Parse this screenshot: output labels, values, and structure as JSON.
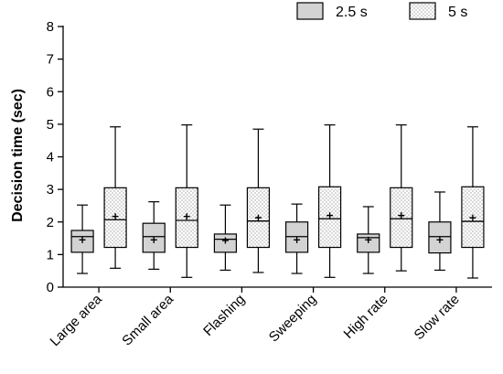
{
  "chart_data": {
    "type": "box",
    "title": "",
    "xlabel": "",
    "ylabel": "Decision time (sec)",
    "ylim": [
      0,
      8
    ],
    "yticks": [
      0,
      1,
      2,
      3,
      4,
      5,
      6,
      7,
      8
    ],
    "grid": false,
    "legend_position": "top-right",
    "categories": [
      "Large area",
      "Small area",
      "Flashing",
      "Sweeping",
      "High rate",
      "Slow rate"
    ],
    "series": [
      {
        "name": "2.5 s",
        "fill": "#d3d3d3",
        "pattern": "solid",
        "boxes": [
          {
            "min": 0.42,
            "q1": 1.07,
            "median": 1.55,
            "q3": 1.74,
            "max": 2.52,
            "mean": 1.45
          },
          {
            "min": 0.55,
            "q1": 1.07,
            "median": 1.55,
            "q3": 1.96,
            "max": 2.62,
            "mean": 1.45
          },
          {
            "min": 0.52,
            "q1": 1.07,
            "median": 1.47,
            "q3": 1.63,
            "max": 2.52,
            "mean": 1.43
          },
          {
            "min": 0.42,
            "q1": 1.07,
            "median": 1.55,
            "q3": 2.0,
            "max": 2.55,
            "mean": 1.45
          },
          {
            "min": 0.42,
            "q1": 1.07,
            "median": 1.52,
            "q3": 1.63,
            "max": 2.47,
            "mean": 1.45
          },
          {
            "min": 0.52,
            "q1": 1.05,
            "median": 1.55,
            "q3": 2.0,
            "max": 2.92,
            "mean": 1.45
          }
        ]
      },
      {
        "name": "5 s",
        "fill": "#ffffff",
        "pattern": "dots",
        "boxes": [
          {
            "min": 0.58,
            "q1": 1.22,
            "median": 2.07,
            "q3": 3.05,
            "max": 4.92,
            "mean": 2.17
          },
          {
            "min": 0.3,
            "q1": 1.22,
            "median": 2.05,
            "q3": 3.05,
            "max": 4.98,
            "mean": 2.17
          },
          {
            "min": 0.45,
            "q1": 1.22,
            "median": 2.03,
            "q3": 3.05,
            "max": 4.85,
            "mean": 2.13
          },
          {
            "min": 0.3,
            "q1": 1.22,
            "median": 2.1,
            "q3": 3.08,
            "max": 4.98,
            "mean": 2.2
          },
          {
            "min": 0.5,
            "q1": 1.22,
            "median": 2.1,
            "q3": 3.05,
            "max": 4.98,
            "mean": 2.2
          },
          {
            "min": 0.28,
            "q1": 1.22,
            "median": 2.02,
            "q3": 3.08,
            "max": 4.92,
            "mean": 2.13
          }
        ]
      }
    ]
  }
}
